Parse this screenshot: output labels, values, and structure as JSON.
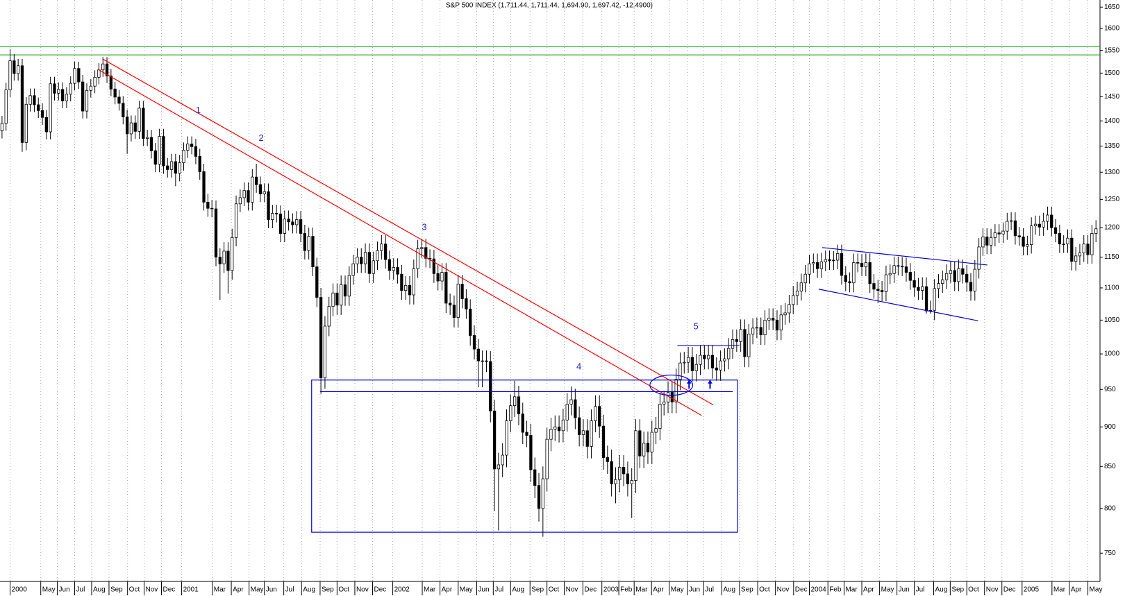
{
  "chart_data": {
    "type": "candlestick",
    "title": "S&P 500 INDEX (1,711.44, 1,711.44, 1,694.90, 1,697.42, -12.4900)",
    "log_scale": true,
    "grid": "x",
    "up_color": "#ffffff",
    "down_color": "#000000",
    "ylim": [
      720,
      1667
    ],
    "yticks": [
      750,
      800,
      850,
      900,
      950,
      1000,
      1050,
      1100,
      1150,
      1200,
      1250,
      1300,
      1350,
      1400,
      1450,
      1500,
      1550,
      1600,
      1650
    ],
    "xlim": [
      -0.5,
      272
    ],
    "xticks": [
      {
        "value": 2.0,
        "label": "2000"
      },
      {
        "value": 9.6,
        "label": "May"
      },
      {
        "value": 13.7,
        "label": "Jun"
      },
      {
        "value": 18.0,
        "label": "Jul"
      },
      {
        "value": 22.2,
        "label": "Aug"
      },
      {
        "value": 26.5,
        "label": "Sep"
      },
      {
        "value": 31.1,
        "label": "Oct"
      },
      {
        "value": 35.2,
        "label": "Nov"
      },
      {
        "value": 39.5,
        "label": "Dec"
      },
      {
        "value": 44.5,
        "label": "2001"
      },
      {
        "value": 52.1,
        "label": "Mar"
      },
      {
        "value": 56.8,
        "label": "Apr"
      },
      {
        "value": 61.2,
        "label": "May"
      },
      {
        "value": 65.0,
        "label": "Jun"
      },
      {
        "value": 69.8,
        "label": "Jul"
      },
      {
        "value": 74.2,
        "label": "Aug"
      },
      {
        "value": 78.8,
        "label": "Sep"
      },
      {
        "value": 83.0,
        "label": "Oct"
      },
      {
        "value": 87.4,
        "label": "Nov"
      },
      {
        "value": 91.8,
        "label": "Dec"
      },
      {
        "value": 96.8,
        "label": "2002"
      },
      {
        "value": 104.1,
        "label": "Mar"
      },
      {
        "value": 108.5,
        "label": "Apr"
      },
      {
        "value": 113.0,
        "label": "May"
      },
      {
        "value": 117.6,
        "label": "Jun"
      },
      {
        "value": 121.7,
        "label": "Jul"
      },
      {
        "value": 126.0,
        "label": "Aug"
      },
      {
        "value": 130.8,
        "label": "Sep"
      },
      {
        "value": 135.0,
        "label": "Oct"
      },
      {
        "value": 139.3,
        "label": "Nov"
      },
      {
        "value": 143.9,
        "label": "Dec"
      },
      {
        "value": 148.6,
        "label": "2003"
      },
      {
        "value": 152.8,
        "label": "Feb"
      },
      {
        "value": 156.6,
        "label": "Mar"
      },
      {
        "value": 160.9,
        "label": "Apr"
      },
      {
        "value": 165.3,
        "label": "May"
      },
      {
        "value": 169.8,
        "label": "Jun"
      },
      {
        "value": 173.8,
        "label": "Jul"
      },
      {
        "value": 178.3,
        "label": "Aug"
      },
      {
        "value": 182.7,
        "label": "Sep"
      },
      {
        "value": 187.2,
        "label": "Oct"
      },
      {
        "value": 191.6,
        "label": "Nov"
      },
      {
        "value": 196.1,
        "label": "Dec"
      },
      {
        "value": 200.0,
        "label": "2004"
      },
      {
        "value": 204.6,
        "label": "Feb"
      },
      {
        "value": 208.6,
        "label": "Mar"
      },
      {
        "value": 213.0,
        "label": "Apr"
      },
      {
        "value": 217.4,
        "label": "May"
      },
      {
        "value": 221.7,
        "label": "Jun"
      },
      {
        "value": 226.0,
        "label": "Jul"
      },
      {
        "value": 230.8,
        "label": "Aug"
      },
      {
        "value": 234.9,
        "label": "Sep"
      },
      {
        "value": 239.0,
        "label": "Oct"
      },
      {
        "value": 243.4,
        "label": "Nov"
      },
      {
        "value": 247.7,
        "label": "Dec"
      },
      {
        "value": 252.7,
        "label": "2005"
      },
      {
        "value": 260.1,
        "label": "Mar"
      },
      {
        "value": 264.4,
        "label": "Apr"
      },
      {
        "value": 269.0,
        "label": "May"
      }
    ],
    "open": [
      1380,
      1395,
      1464,
      1527,
      1499,
      1516,
      1357,
      1434,
      1452,
      1433,
      1421,
      1407,
      1378,
      1477,
      1457,
      1465,
      1441,
      1455,
      1478,
      1510,
      1481,
      1420,
      1463,
      1472,
      1491,
      1507,
      1520,
      1494,
      1466,
      1449,
      1436,
      1408,
      1374,
      1396,
      1379,
      1426,
      1365,
      1367,
      1341,
      1315,
      1369,
      1312,
      1305,
      1320,
      1298,
      1318,
      1342,
      1354,
      1349,
      1330,
      1301,
      1245,
      1234,
      1233,
      1150,
      1139,
      1160,
      1128,
      1183,
      1242,
      1253,
      1266,
      1245,
      1291,
      1277,
      1260,
      1264,
      1214,
      1225,
      1224,
      1190,
      1215,
      1210,
      1205,
      1214,
      1190,
      1161,
      1185,
      1134,
      1085,
      966,
      1041,
      1071,
      1092,
      1073,
      1105,
      1087,
      1120,
      1139,
      1150,
      1139,
      1158,
      1123,
      1144,
      1161,
      1172,
      1146,
      1128,
      1133,
      1122,
      1096,
      1104,
      1089,
      1131,
      1164,
      1166,
      1148,
      1147,
      1123,
      1111,
      1125,
      1076,
      1073,
      1054,
      1106,
      1083,
      1067,
      1027,
      1007,
      990,
      990,
      989,
      921,
      847,
      852,
      864,
      908,
      928,
      940,
      917,
      893,
      889,
      846,
      827,
      800,
      835,
      884,
      897,
      900,
      895,
      909,
      930,
      936,
      912,
      890,
      895,
      875,
      908,
      927,
      901,
      861,
      856,
      829,
      834,
      849,
      841,
      829,
      833,
      895,
      863,
      879,
      868,
      893,
      898,
      930,
      933,
      946,
      933,
      964,
      987,
      988,
      995,
      976,
      985,
      998,
      993,
      998,
      980,
      977,
      990,
      993,
      1008,
      1021,
      1018,
      1036,
      996,
      1029,
      1038,
      1039,
      1028,
      1050,
      1053,
      1050,
      1035,
      1058,
      1061,
      1074,
      1088,
      1095,
      1108,
      1122,
      1139,
      1141,
      1131,
      1142,
      1146,
      1144,
      1145,
      1156,
      1120,
      1110,
      1108,
      1141,
      1140,
      1134,
      1141,
      1107,
      1098,
      1096,
      1094,
      1121,
      1123,
      1136,
      1135,
      1134,
      1125,
      1112,
      1101,
      1096,
      1102,
      1064,
      1065,
      1099,
      1107,
      1113,
      1123,
      1128,
      1110,
      1131,
      1122,
      1109,
      1095,
      1130,
      1167,
      1184,
      1170,
      1183,
      1191,
      1189,
      1194,
      1211,
      1212,
      1186,
      1184,
      1168,
      1171,
      1203,
      1206,
      1201,
      1211,
      1222,
      1200,
      1190,
      1172,
      1172,
      1182,
      1143,
      1152,
      1157,
      1172,
      1154,
      1190
    ],
    "high": [
      1410,
      1479,
      1553,
      1542,
      1531,
      1531,
      1449,
      1467,
      1467,
      1448,
      1436,
      1422,
      1492,
      1492,
      1480,
      1480,
      1470,
      1493,
      1525,
      1525,
      1496,
      1478,
      1487,
      1506,
      1522,
      1535,
      1535,
      1509,
      1481,
      1464,
      1451,
      1423,
      1411,
      1411,
      1441,
      1441,
      1382,
      1382,
      1356,
      1384,
      1384,
      1327,
      1335,
      1335,
      1333,
      1357,
      1369,
      1369,
      1364,
      1345,
      1316,
      1260,
      1249,
      1248,
      1165,
      1175,
      1175,
      1198,
      1257,
      1268,
      1281,
      1281,
      1306,
      1316,
      1292,
      1279,
      1279,
      1240,
      1240,
      1239,
      1230,
      1230,
      1225,
      1229,
      1229,
      1205,
      1200,
      1200,
      1149,
      1100,
      1056,
      1086,
      1107,
      1107,
      1120,
      1120,
      1135,
      1154,
      1165,
      1165,
      1173,
      1173,
      1159,
      1176,
      1187,
      1187,
      1161,
      1148,
      1148,
      1137,
      1119,
      1119,
      1146,
      1179,
      1181,
      1181,
      1163,
      1162,
      1138,
      1140,
      1140,
      1091,
      1088,
      1121,
      1121,
      1098,
      1082,
      1042,
      1022,
      1005,
      1005,
      1004,
      936,
      867,
      879,
      923,
      943,
      962,
      955,
      932,
      908,
      904,
      861,
      842,
      850,
      899,
      912,
      915,
      915,
      924,
      945,
      954,
      951,
      927,
      910,
      910,
      923,
      942,
      942,
      916,
      876,
      871,
      849,
      864,
      864,
      856,
      848,
      910,
      910,
      894,
      894,
      908,
      913,
      945,
      948,
      961,
      961,
      979,
      1002,
      1003,
      1010,
      1010,
      1000,
      1013,
      1013,
      1013,
      1013,
      995,
      1005,
      1008,
      1023,
      1036,
      1036,
      1051,
      1051,
      1044,
      1053,
      1054,
      1054,
      1065,
      1068,
      1068,
      1065,
      1073,
      1076,
      1089,
      1103,
      1110,
      1123,
      1137,
      1154,
      1156,
      1156,
      1157,
      1161,
      1161,
      1160,
      1171,
      1171,
      1135,
      1125,
      1156,
      1156,
      1155,
      1156,
      1156,
      1122,
      1113,
      1111,
      1136,
      1138,
      1151,
      1151,
      1150,
      1149,
      1140,
      1127,
      1116,
      1117,
      1117,
      1080,
      1114,
      1122,
      1128,
      1138,
      1143,
      1143,
      1146,
      1146,
      1137,
      1124,
      1145,
      1182,
      1199,
      1199,
      1198,
      1206,
      1206,
      1209,
      1226,
      1227,
      1227,
      1201,
      1199,
      1186,
      1218,
      1221,
      1221,
      1226,
      1237,
      1237,
      1215,
      1205,
      1187,
      1197,
      1197,
      1167,
      1172,
      1187,
      1187,
      1205,
      1213
    ],
    "low": [
      1365,
      1380,
      1449,
      1484,
      1484,
      1339,
      1342,
      1419,
      1418,
      1406,
      1392,
      1363,
      1363,
      1442,
      1442,
      1426,
      1426,
      1440,
      1463,
      1466,
      1405,
      1405,
      1448,
      1457,
      1476,
      1492,
      1479,
      1451,
      1434,
      1421,
      1393,
      1335,
      1359,
      1364,
      1364,
      1350,
      1350,
      1326,
      1300,
      1300,
      1297,
      1290,
      1290,
      1274,
      1283,
      1303,
      1327,
      1334,
      1315,
      1286,
      1230,
      1219,
      1218,
      1135,
      1081,
      1124,
      1091,
      1113,
      1168,
      1227,
      1238,
      1230,
      1230,
      1262,
      1245,
      1245,
      1199,
      1199,
      1209,
      1175,
      1175,
      1195,
      1190,
      1190,
      1175,
      1146,
      1146,
      1119,
      1070,
      944,
      951,
      1026,
      1056,
      1058,
      1058,
      1072,
      1072,
      1105,
      1124,
      1124,
      1124,
      1108,
      1108,
      1129,
      1146,
      1131,
      1113,
      1113,
      1107,
      1081,
      1081,
      1074,
      1074,
      1116,
      1149,
      1133,
      1132,
      1108,
      1096,
      1096,
      1061,
      1058,
      1039,
      1039,
      1068,
      1052,
      1012,
      992,
      953,
      953,
      974,
      906,
      797,
      775,
      837,
      849,
      893,
      913,
      902,
      878,
      874,
      831,
      812,
      785,
      768,
      820,
      869,
      882,
      880,
      880,
      894,
      915,
      897,
      875,
      875,
      860,
      860,
      893,
      886,
      846,
      841,
      814,
      806,
      819,
      826,
      814,
      789,
      818,
      848,
      848,
      853,
      853,
      878,
      883,
      915,
      918,
      918,
      918,
      949,
      972,
      973,
      961,
      961,
      970,
      978,
      978,
      965,
      962,
      962,
      975,
      978,
      993,
      1003,
      1003,
      981,
      981,
      1014,
      1023,
      1013,
      1013,
      1035,
      1035,
      1020,
      1020,
      1043,
      1046,
      1059,
      1073,
      1080,
      1093,
      1107,
      1124,
      1116,
      1116,
      1127,
      1129,
      1129,
      1130,
      1105,
      1095,
      1093,
      1093,
      1125,
      1119,
      1119,
      1092,
      1083,
      1076,
      1079,
      1079,
      1106,
      1108,
      1120,
      1119,
      1110,
      1097,
      1086,
      1081,
      1081,
      1060,
      1060,
      1050,
      1084,
      1092,
      1098,
      1108,
      1095,
      1095,
      1107,
      1094,
      1080,
      1080,
      1115,
      1152,
      1155,
      1155,
      1168,
      1174,
      1174,
      1179,
      1196,
      1171,
      1169,
      1153,
      1153,
      1156,
      1188,
      1186,
      1186,
      1196,
      1185,
      1175,
      1157,
      1157,
      1157,
      1128,
      1128,
      1137,
      1142,
      1139,
      1139,
      1175
    ],
    "close": [
      1395,
      1464,
      1527,
      1499,
      1516,
      1357,
      1434,
      1452,
      1433,
      1421,
      1407,
      1378,
      1477,
      1457,
      1465,
      1441,
      1455,
      1478,
      1510,
      1481,
      1420,
      1463,
      1472,
      1491,
      1507,
      1520,
      1494,
      1466,
      1449,
      1436,
      1408,
      1374,
      1396,
      1379,
      1426,
      1365,
      1367,
      1341,
      1315,
      1369,
      1312,
      1305,
      1320,
      1298,
      1318,
      1342,
      1354,
      1349,
      1330,
      1301,
      1245,
      1234,
      1233,
      1150,
      1139,
      1160,
      1128,
      1183,
      1242,
      1253,
      1266,
      1245,
      1291,
      1277,
      1260,
      1264,
      1214,
      1225,
      1224,
      1190,
      1215,
      1210,
      1205,
      1214,
      1190,
      1161,
      1185,
      1134,
      1085,
      966,
      1041,
      1071,
      1092,
      1073,
      1105,
      1087,
      1120,
      1139,
      1150,
      1139,
      1158,
      1123,
      1144,
      1161,
      1172,
      1146,
      1128,
      1133,
      1122,
      1096,
      1104,
      1089,
      1131,
      1164,
      1166,
      1148,
      1147,
      1123,
      1111,
      1125,
      1076,
      1073,
      1054,
      1106,
      1083,
      1067,
      1027,
      1007,
      990,
      990,
      989,
      921,
      847,
      852,
      864,
      908,
      928,
      940,
      917,
      893,
      889,
      846,
      827,
      800,
      835,
      884,
      897,
      900,
      895,
      909,
      930,
      936,
      912,
      890,
      895,
      875,
      908,
      927,
      901,
      861,
      856,
      829,
      834,
      849,
      841,
      829,
      833,
      895,
      863,
      879,
      868,
      893,
      898,
      930,
      933,
      946,
      933,
      964,
      987,
      988,
      995,
      976,
      985,
      998,
      993,
      998,
      980,
      977,
      990,
      993,
      1008,
      1021,
      1018,
      1036,
      996,
      1029,
      1038,
      1039,
      1028,
      1050,
      1053,
      1050,
      1035,
      1058,
      1061,
      1074,
      1088,
      1095,
      1108,
      1122,
      1139,
      1141,
      1131,
      1142,
      1146,
      1144,
      1145,
      1156,
      1120,
      1110,
      1108,
      1141,
      1140,
      1134,
      1141,
      1107,
      1098,
      1096,
      1094,
      1121,
      1123,
      1136,
      1135,
      1134,
      1125,
      1112,
      1101,
      1096,
      1102,
      1064,
      1065,
      1099,
      1107,
      1113,
      1123,
      1128,
      1110,
      1131,
      1122,
      1109,
      1095,
      1130,
      1167,
      1184,
      1170,
      1183,
      1191,
      1189,
      1194,
      1211,
      1212,
      1186,
      1184,
      1168,
      1171,
      1203,
      1206,
      1201,
      1211,
      1222,
      1200,
      1190,
      1172,
      1172,
      1182,
      1143,
      1152,
      1157,
      1172,
      1154,
      1190,
      1198
    ],
    "hlines": [
      {
        "value": 1558,
        "color": "#00a000"
      },
      {
        "value": 1540,
        "color": "#00a000"
      }
    ],
    "trendlines": [
      {
        "color": "#ff0000",
        "from": [
          24.9,
          1531
        ],
        "to": [
          176.2,
          929
        ]
      },
      {
        "color": "#ff0000",
        "from": [
          23.8,
          1508
        ],
        "to": [
          173.3,
          915
        ]
      },
      {
        "color": "#0000dd",
        "from": [
          78.8,
          947
        ],
        "to": [
          181.0,
          947
        ]
      },
      {
        "color": "#0000dd",
        "from": [
          167.3,
          1012
        ],
        "to": [
          182.7,
          1012
        ]
      },
      {
        "color": "#0000dd",
        "from": [
          203.2,
          1166
        ],
        "to": [
          244.1,
          1137
        ]
      },
      {
        "color": "#0000dd",
        "from": [
          202.3,
          1098
        ],
        "to": [
          241.8,
          1049
        ]
      }
    ],
    "boxes": [
      {
        "color": "#0000dd",
        "x": [
          76.7,
          182.2
        ],
        "y": [
          773,
          963
        ]
      }
    ],
    "ellipses": [
      {
        "color": "#0000dd",
        "x": [
          160.5,
          171.1
        ],
        "y": [
          942,
          970
        ]
      }
    ],
    "arrows": [
      {
        "color": "#0000dd",
        "from": [
          170.2,
          951
        ],
        "to": [
          170.2,
          963
        ]
      },
      {
        "color": "#0000dd",
        "from": [
          175.4,
          951
        ],
        "to": [
          175.4,
          963
        ]
      }
    ],
    "annotations": [
      {
        "text": "1",
        "at": [
          48.6,
          1421
        ]
      },
      {
        "text": "2",
        "at": [
          64.2,
          1365
        ]
      },
      {
        "text": "3",
        "at": [
          104.6,
          1200
        ]
      },
      {
        "text": "4",
        "at": [
          142.9,
          981
        ]
      },
      {
        "text": "5",
        "at": [
          171.9,
          1040
        ]
      }
    ]
  }
}
